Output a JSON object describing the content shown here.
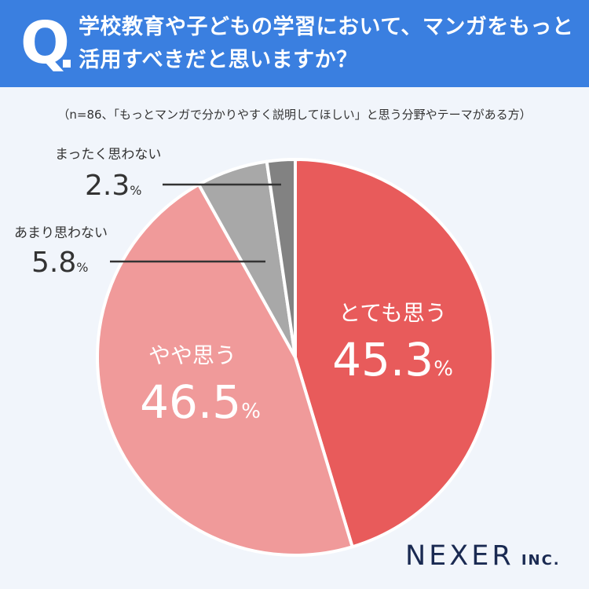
{
  "question": {
    "mark": "Q",
    "lines": [
      "学校教育や子どもの学習において、マンガをもっと",
      "活用すべきだと思いますか？"
    ]
  },
  "note": "（n=86、「もっとマンガで分かりやすく説明してほしい」と思う分野やテーマがある方）",
  "chart_data": {
    "type": "pie",
    "slices": [
      {
        "label": "とても思う",
        "value": 45.3,
        "color": "#e85b5b"
      },
      {
        "label": "やや思う",
        "value": 46.5,
        "color": "#f09a9a"
      },
      {
        "label": "あまり思わない",
        "value": 5.8,
        "color": "#a8a8a8"
      },
      {
        "label": "まったく思わない",
        "value": 2.3,
        "color": "#828282"
      }
    ],
    "unit": "%"
  },
  "brand": {
    "main": "NEXER",
    "sub": "INC."
  }
}
